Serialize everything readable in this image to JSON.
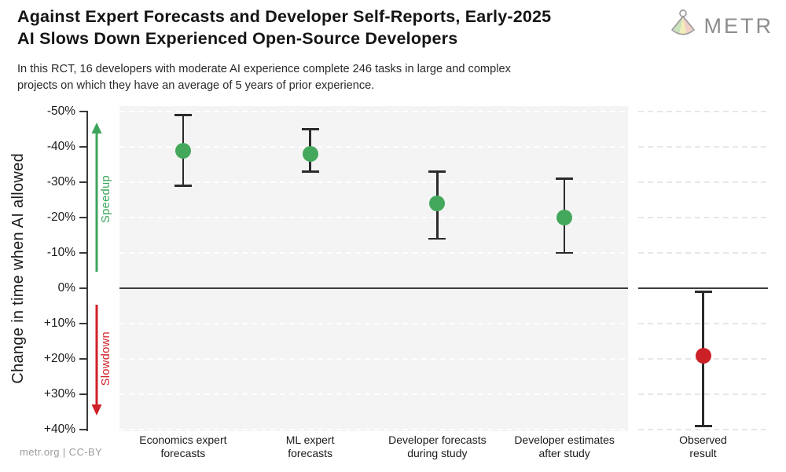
{
  "header": {
    "title": "Against Expert Forecasts and Developer Self-Reports, Early-2025\nAI Slows Down Experienced Open-Source Developers",
    "subtitle": "In this RCT, 16 developers with moderate AI experience complete 246 tasks in large and complex\nprojects on which they have an average of 5 years of prior experience.",
    "logo_text": "METR"
  },
  "footer": {
    "credit": "metr.org | CC-BY"
  },
  "colors": {
    "forecast_point": "#44a85c",
    "observed_point": "#cb2026",
    "speedup_accent": "#3ca55c",
    "slowdown_accent": "#cf2128",
    "errorbar": "#2b2b2b",
    "main_panel_bg": "#f4f4f4",
    "observed_panel_bg": "#ffffff"
  },
  "chart_data": {
    "type": "scatter",
    "title": "Against Expert Forecasts and Developer Self-Reports, Early-2025 AI Slows Down Experienced Open-Source Developers",
    "subtitle": "In this RCT, 16 developers with moderate AI experience complete 246 tasks in large and complex projects on which they have an average of 5 years of prior experience.",
    "ylabel": "Change in time when AI allowed",
    "unit": "percent change, negative = speedup",
    "ylim_top_to_bottom": [
      -50,
      40
    ],
    "grid": "horizontal dashed every 10%, solid line at 0%",
    "zero_line": 0,
    "yticks": [
      {
        "v": -50,
        "label": "-50%"
      },
      {
        "v": -40,
        "label": "-40%"
      },
      {
        "v": -30,
        "label": "-30%"
      },
      {
        "v": -20,
        "label": "-20%"
      },
      {
        "v": -10,
        "label": "-10%"
      },
      {
        "v": 0,
        "label": "0%"
      },
      {
        "v": 10,
        "label": "+10%"
      },
      {
        "v": 20,
        "label": "+20%"
      },
      {
        "v": 30,
        "label": "+30%"
      },
      {
        "v": 40,
        "label": "+40%"
      }
    ],
    "annotations": {
      "speedup": {
        "label": "Speedup",
        "color": "#3ca55c",
        "direction": "up",
        "range": "below 0%"
      },
      "slowdown": {
        "label": "Slowdown",
        "color": "#cf2128",
        "direction": "down",
        "range": "above 0%"
      }
    },
    "categories": [
      "Economics expert\nforecasts",
      "ML expert\nforecasts",
      "Developer forecasts\nduring study",
      "Developer estimates\nafter study",
      "Observed\nresult"
    ],
    "points": [
      {
        "category": "Economics expert\nforecasts",
        "panel": "main",
        "value": -39,
        "ci": [
          -49,
          -29
        ],
        "color": "#44a85c"
      },
      {
        "category": "ML expert\nforecasts",
        "panel": "main",
        "value": -38,
        "ci": [
          -45,
          -33
        ],
        "color": "#44a85c"
      },
      {
        "category": "Developer forecasts\nduring study",
        "panel": "main",
        "value": -24,
        "ci": [
          -33,
          -14
        ],
        "color": "#44a85c"
      },
      {
        "category": "Developer estimates\nafter study",
        "panel": "main",
        "value": -20,
        "ci": [
          -31,
          -10
        ],
        "color": "#44a85c"
      },
      {
        "category": "Observed\nresult",
        "panel": "observed",
        "value": 19,
        "ci": [
          1,
          39
        ],
        "color": "#cb2026"
      }
    ]
  }
}
